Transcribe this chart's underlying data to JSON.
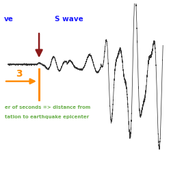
{
  "background_color": "#ffffff",
  "wave_color": "#333333",
  "p_wave_color": "#1a1aff",
  "s_wave_color": "#1a1aff",
  "arrow_color": "#8b1a1a",
  "orange_color": "#ff8c00",
  "green_color": "#6ab04c",
  "annotation_text": "3",
  "bottom_text1": "er of seconds => distance from",
  "bottom_text2": "tation to earthquake epicenter",
  "p_label_text": "ve",
  "s_label_text": "S wave",
  "figsize": [
    2.5,
    2.5
  ],
  "dpi": 100,
  "xlim": [
    -0.03,
    1.03
  ],
  "ylim": [
    -1.1,
    0.65
  ]
}
